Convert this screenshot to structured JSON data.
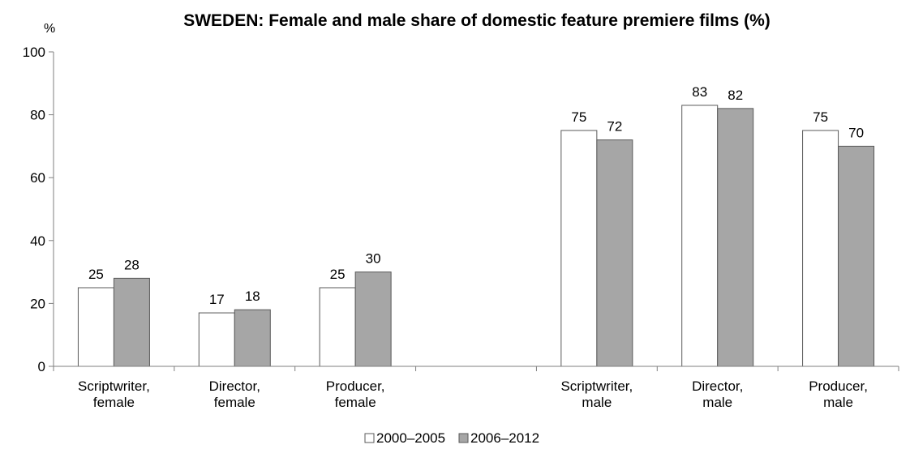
{
  "chart_data": {
    "type": "bar",
    "title": "SWEDEN: Female and male share of domestic feature premiere films (%)",
    "y_unit": "%",
    "ylim": [
      0,
      100
    ],
    "y_ticks": [
      "0",
      "20",
      "40",
      "60",
      "80",
      "100"
    ],
    "grid": false,
    "legend_position": "bottom",
    "categories": [
      [
        "Scriptwriter,",
        "female"
      ],
      [
        "Director,",
        "female"
      ],
      [
        "Producer,",
        "female"
      ],
      [
        "",
        ""
      ],
      [
        "Scriptwriter,",
        "male"
      ],
      [
        "Director,",
        "male"
      ],
      [
        "Producer,",
        "male"
      ]
    ],
    "series": [
      {
        "name": "2000–2005",
        "color": "#ffffff",
        "values": [
          25,
          17,
          25,
          null,
          75,
          83,
          75
        ]
      },
      {
        "name": "2006–2012",
        "color": "#a6a6a6",
        "values": [
          28,
          18,
          30,
          null,
          72,
          82,
          70
        ]
      }
    ]
  }
}
